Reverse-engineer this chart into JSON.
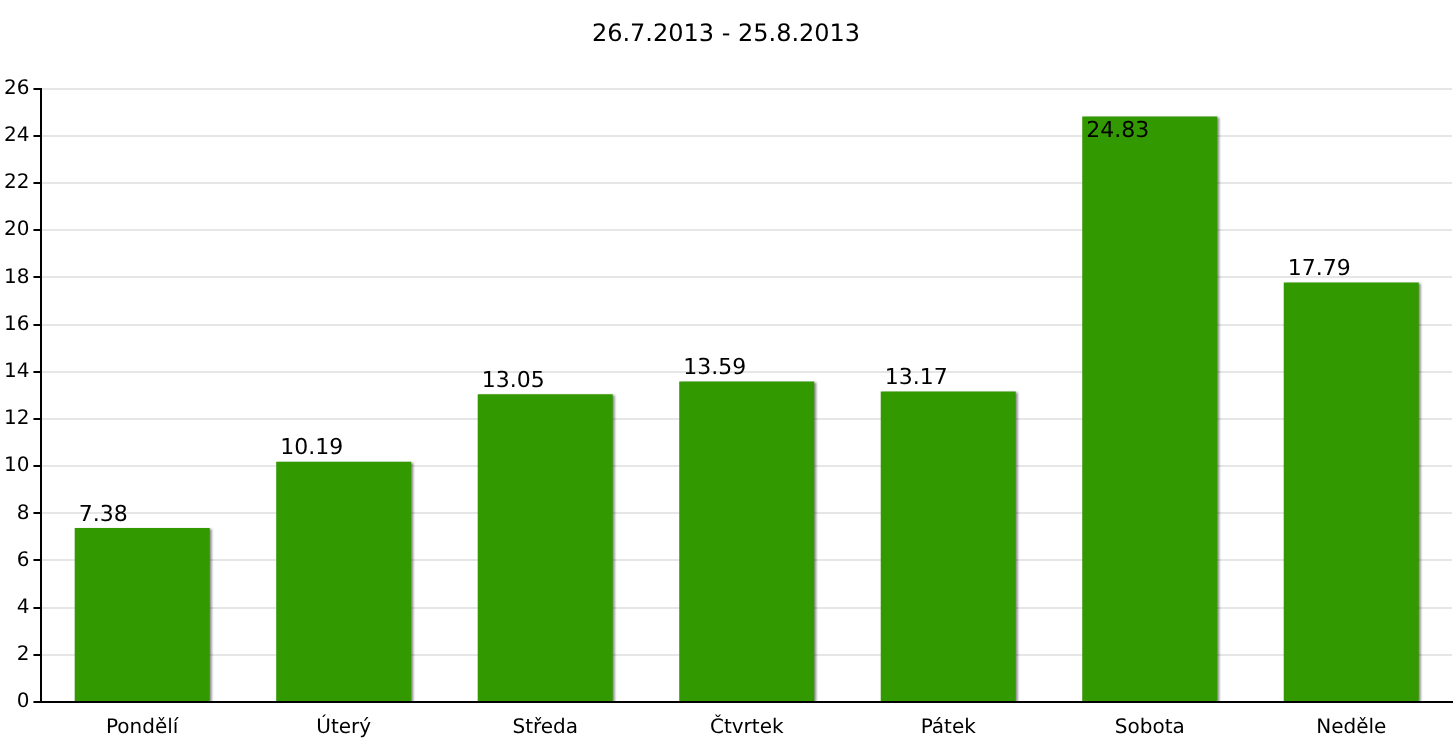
{
  "chart_data": {
    "type": "bar",
    "title": "26.7.2013 - 25.8.2013",
    "categories": [
      "Pondělí",
      "Úterý",
      "Středa",
      "Čtvrtek",
      "Pátek",
      "Sobota",
      "Neděle"
    ],
    "values": [
      7.38,
      10.19,
      13.05,
      13.59,
      13.17,
      24.83,
      17.79
    ],
    "color": "#339900",
    "ylim": [
      0,
      26
    ],
    "yticks": [
      0,
      2,
      4,
      6,
      8,
      10,
      12,
      14,
      16,
      18,
      20,
      22,
      24,
      26
    ],
    "grid": "y",
    "data_labels": true,
    "legend": false
  }
}
